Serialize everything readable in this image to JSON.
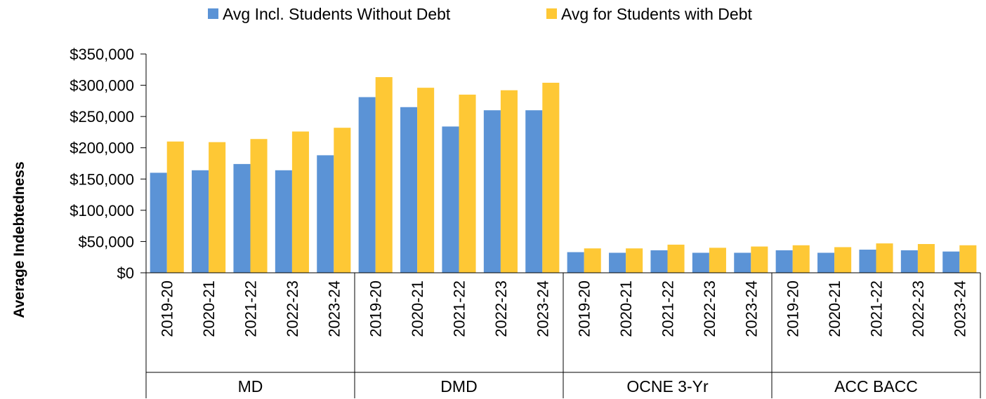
{
  "chart_data": {
    "type": "bar",
    "ylabel": "Average Indebtedness",
    "xlabel": "",
    "ylim": [
      0,
      350000
    ],
    "y_ticks": [
      "$0",
      "$50,000",
      "$100,000",
      "$150,000",
      "$200,000",
      "$250,000",
      "$300,000",
      "$350,000"
    ],
    "legend_position": "top",
    "groups": [
      {
        "name": "MD",
        "categories": [
          "2019-20",
          "2020-21",
          "2021-22",
          "2022-23",
          "2023-24"
        ]
      },
      {
        "name": "DMD",
        "categories": [
          "2019-20",
          "2020-21",
          "2021-22",
          "2022-23",
          "2023-24"
        ]
      },
      {
        "name": "OCNE 3-Yr",
        "categories": [
          "2019-20",
          "2020-21",
          "2021-22",
          "2022-23",
          "2023-24"
        ]
      },
      {
        "name": "ACC BACC",
        "categories": [
          "2019-20",
          "2020-21",
          "2021-22",
          "2022-23",
          "2023-24"
        ]
      }
    ],
    "series": [
      {
        "name": "Avg Incl. Students Without Debt",
        "color": "#5b93d6",
        "values": [
          160000,
          164000,
          174000,
          164000,
          188000,
          281000,
          265000,
          234000,
          260000,
          260000,
          33000,
          32000,
          36000,
          32000,
          32000,
          36000,
          32000,
          37000,
          36000,
          34000
        ]
      },
      {
        "name": "Avg for Students with Debt",
        "color": "#fec835",
        "values": [
          210000,
          209000,
          214000,
          226000,
          232000,
          313000,
          296000,
          285000,
          292000,
          304000,
          39000,
          39000,
          45000,
          40000,
          42000,
          44000,
          41000,
          47000,
          46000,
          44000
        ]
      }
    ]
  }
}
